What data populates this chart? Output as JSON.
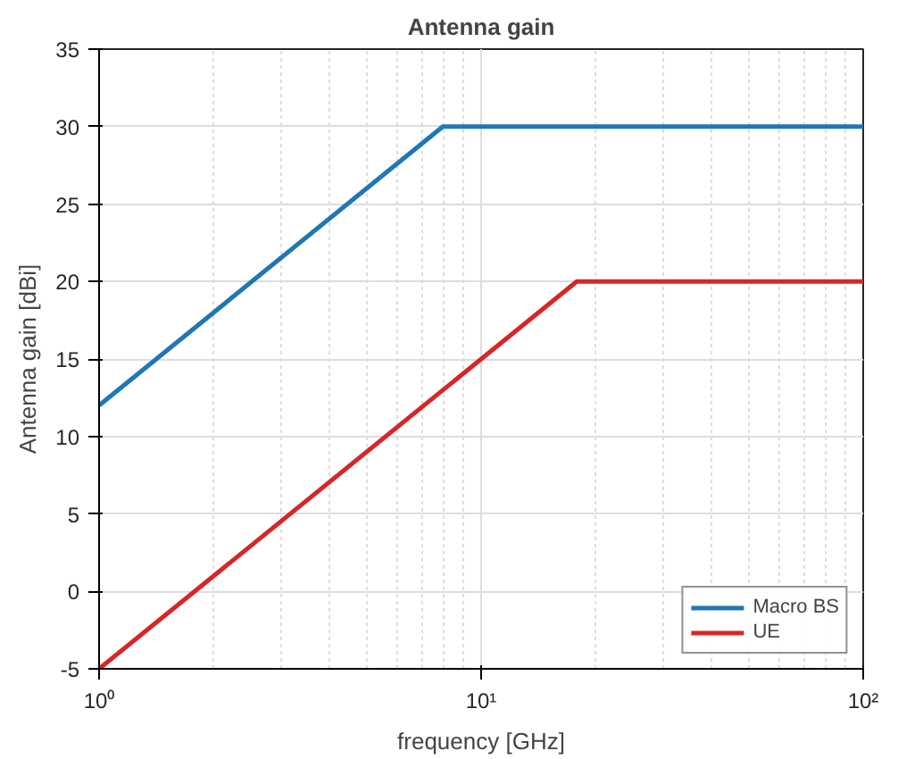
{
  "chart_data": {
    "type": "line",
    "title": "Antenna gain",
    "xlabel": "frequency [GHz]",
    "ylabel": "Antenna gain [dBi]",
    "log": "x",
    "grid": true,
    "legend": "bottom right",
    "marker": "none",
    "line_style": "solid",
    "xlim": [
      1,
      100
    ],
    "xticks": [
      {
        "value": 1,
        "label": "10⁰"
      },
      {
        "value": 10,
        "label": "10¹"
      },
      {
        "value": 100,
        "label": "10²"
      }
    ],
    "ylim": [
      -5,
      35
    ],
    "yticks": [
      -5,
      0,
      5,
      10,
      15,
      20,
      25,
      30,
      35
    ],
    "series": [
      {
        "name": "Macro BS",
        "color": "#1f77b4",
        "x": [
          1,
          7.94,
          100
        ],
        "values": [
          12,
          30,
          30
        ]
      },
      {
        "name": "UE",
        "color": "#d62728",
        "x": [
          1,
          17.8,
          100
        ],
        "values": [
          -5,
          20,
          20
        ]
      }
    ]
  }
}
